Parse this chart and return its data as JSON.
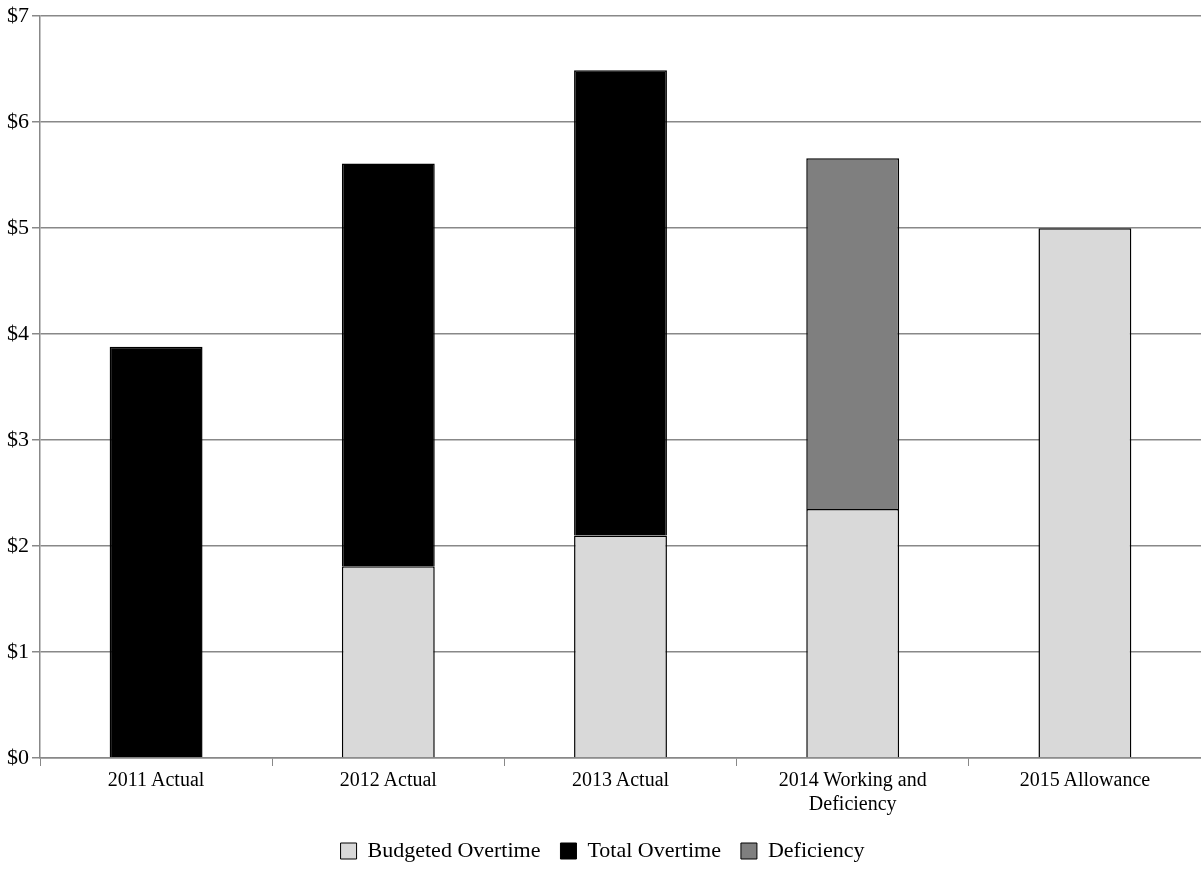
{
  "chart_data": {
    "type": "bar",
    "stacked": true,
    "categories": [
      "2011 Actual",
      "2012 Actual",
      "2013 Actual",
      "2014 Working and Deficiency",
      "2015 Allowance"
    ],
    "series": [
      {
        "name": "Budgeted Overtime",
        "color": "#d9d9d9",
        "values": [
          0,
          1.81,
          2.1,
          2.35,
          5.0
        ]
      },
      {
        "name": "Total Overtime",
        "color": "#000000",
        "values": [
          3.88,
          3.8,
          4.39,
          0,
          0
        ]
      },
      {
        "name": "Deficiency",
        "color": "#7f7f7f",
        "values": [
          0,
          0,
          0,
          3.31,
          0
        ]
      }
    ],
    "ylim": [
      0,
      7
    ],
    "yticks": [
      {
        "value": 0,
        "label": "$0"
      },
      {
        "value": 1,
        "label": "$1"
      },
      {
        "value": 2,
        "label": "$2"
      },
      {
        "value": 3,
        "label": "$3"
      },
      {
        "value": 4,
        "label": "$4"
      },
      {
        "value": 5,
        "label": "$5"
      },
      {
        "value": 6,
        "label": "$6"
      },
      {
        "value": 7,
        "label": "$7"
      }
    ],
    "grid": "y",
    "legend": "bottom"
  }
}
